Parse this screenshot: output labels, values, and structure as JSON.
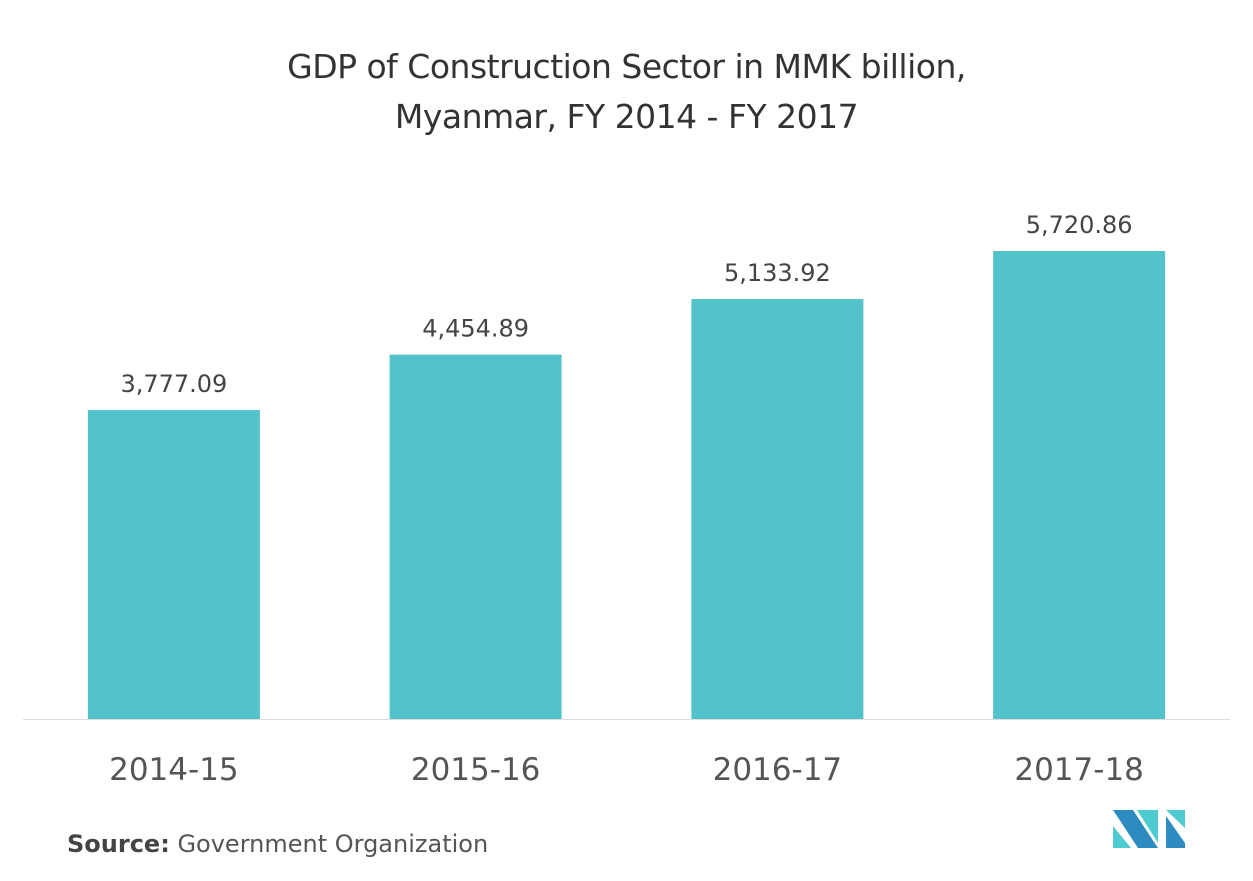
{
  "chart_data": {
    "type": "bar",
    "title_line1": "GDP of Construction Sector in MMK billion,",
    "title_line2": "Myanmar, FY 2014 - FY 2017",
    "categories": [
      "2014-15",
      "2015-16",
      "2016-17",
      "2017-18"
    ],
    "values": [
      3777.09,
      4454.89,
      5133.92,
      5720.86
    ],
    "labels": [
      "3,777.09",
      "4,454.89",
      "5,133.92",
      "5,720.86"
    ],
    "xlabel": "",
    "ylabel": "",
    "ylim": [
      0,
      6345
    ],
    "grid": false,
    "bar_color": "#52C3CA"
  },
  "source": {
    "label": "Source:",
    "text": "Government Organization"
  },
  "logo": {
    "colors": [
      "#2E8BC0",
      "#4ECBD0"
    ]
  }
}
